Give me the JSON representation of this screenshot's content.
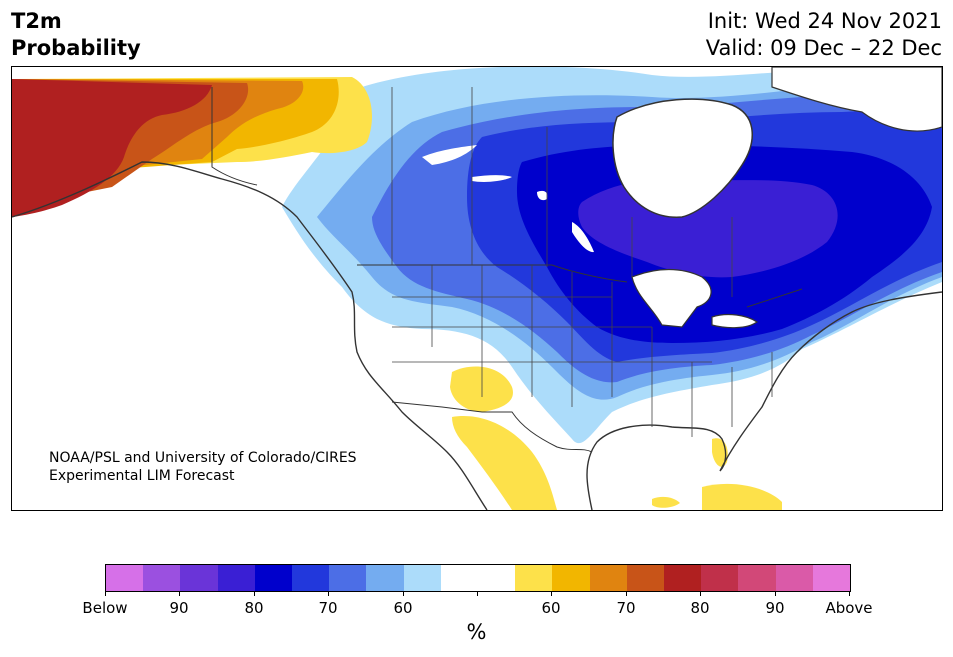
{
  "header": {
    "title_line1": "T2m",
    "title_line2": "Probability",
    "init_text": "Init: Wed 24 Nov 2021",
    "valid_text": "Valid: 09 Dec – 22 Dec"
  },
  "map": {
    "credit_line1": "NOAA/PSL and University of Colorado/CIRES",
    "credit_line2": "Experimental LIM Forecast",
    "region": "North America",
    "features": [
      {
        "name": "alaska-warm",
        "category": "Above 80%"
      },
      {
        "name": "hudson-bay-cold",
        "category": "Below 80-90%"
      },
      {
        "name": "canada-cold",
        "category": "Below 60-80%"
      },
      {
        "name": "mexico-warm",
        "category": "Above 50-60%"
      },
      {
        "name": "florida-warm",
        "category": "Above 50-60%"
      }
    ]
  },
  "colorbar": {
    "colors": [
      "#d670e8",
      "#9b50e0",
      "#6a34d8",
      "#3a1fd4",
      "#0000cc",
      "#2238dc",
      "#4c6ee6",
      "#74acf0",
      "#acdcfa",
      "#ffffff",
      "#ffffff",
      "#fde14a",
      "#f2b600",
      "#e08410",
      "#c85418",
      "#b02020",
      "#c0304a",
      "#d24878",
      "#da5aa8",
      "#e678dc"
    ],
    "tick_labels": [
      "Below",
      "90",
      "80",
      "70",
      "60",
      "",
      "60",
      "70",
      "80",
      "90",
      "Above"
    ],
    "unit_label": "%"
  }
}
